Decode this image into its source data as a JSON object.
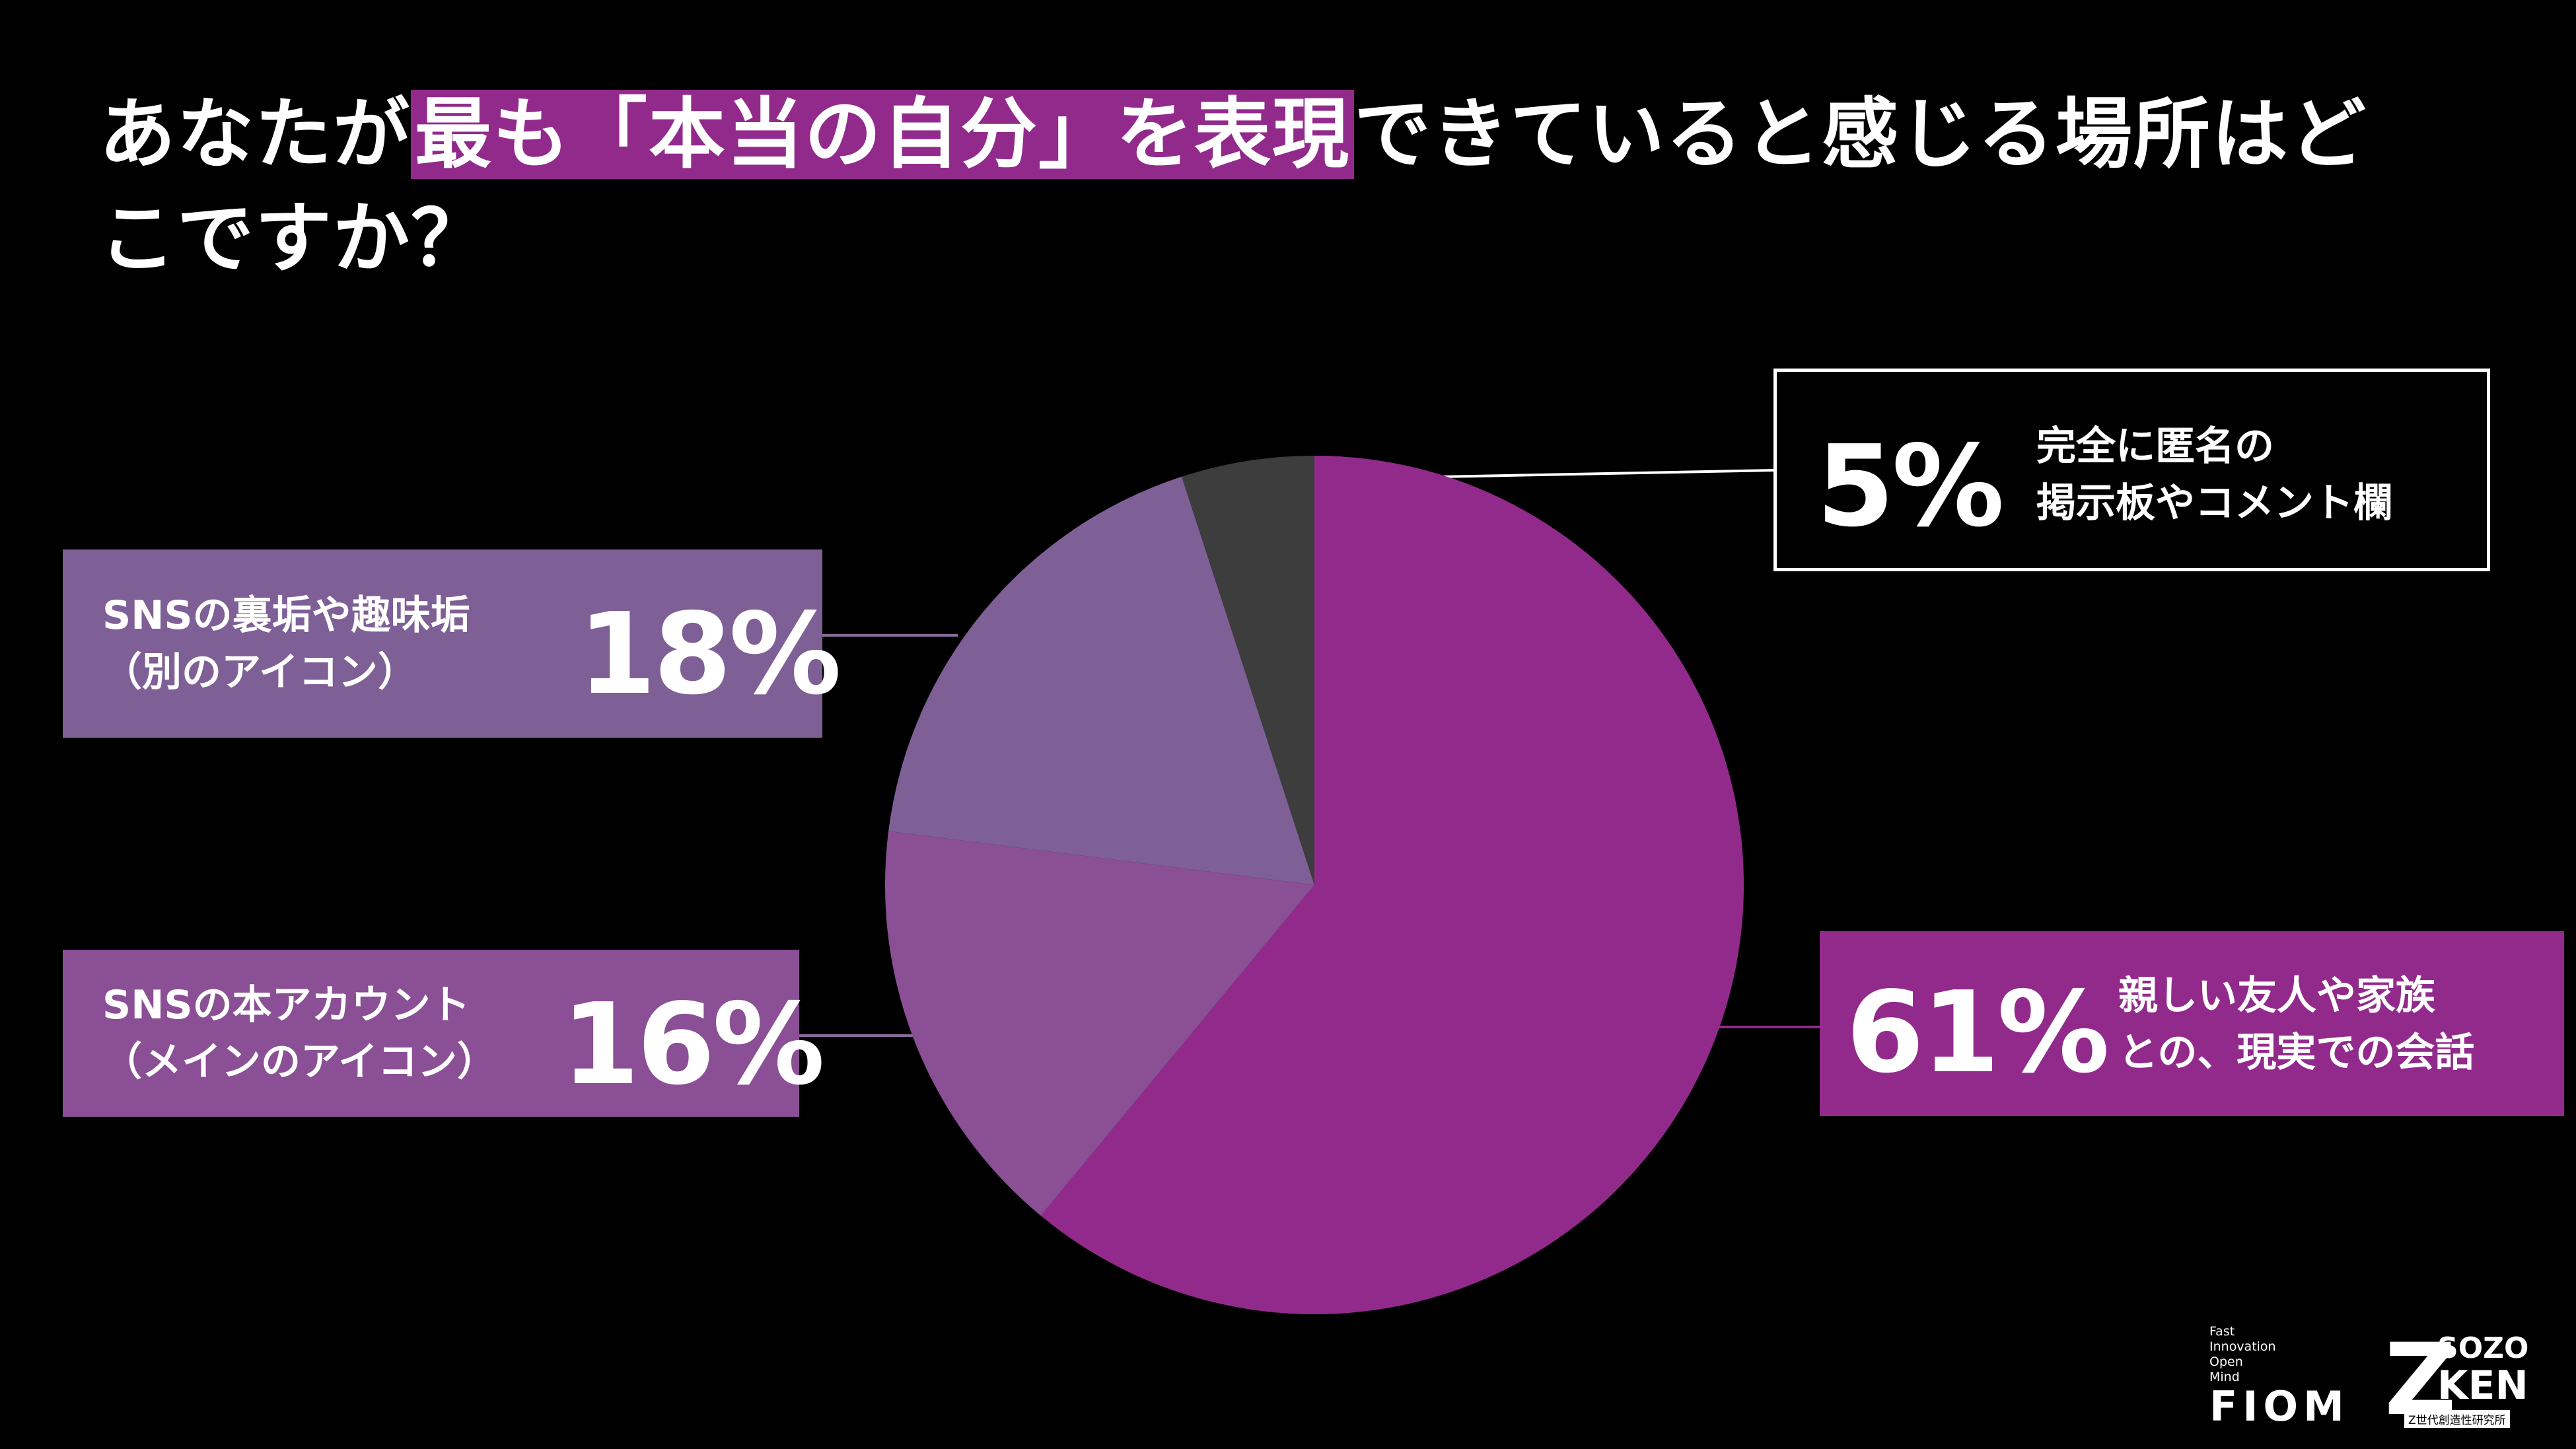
{
  "title": {
    "before": "あなたが",
    "highlight": "最も「本当の自分」を表現",
    "after": "できていると感じる場所はどこですか？"
  },
  "chart_data": {
    "type": "pie",
    "start_angle_deg": 0,
    "direction": "clockwise",
    "slices": [
      {
        "label": "親しい友人や家族との、現実での会話",
        "value": 61,
        "display": "61%",
        "color": "#922a8c",
        "label_lines": [
          "親しい友人や家族",
          "との、現実での会話"
        ]
      },
      {
        "label": "SNSの本アカウント（メインのアイコン）",
        "value": 16,
        "display": "16%",
        "color": "#8a4f95",
        "label_lines": [
          "SNSの本アカウント",
          "（メインのアイコン）"
        ]
      },
      {
        "label": "SNSの裏垢や趣味垢（別のアイコン）",
        "value": 18,
        "display": "18%",
        "color": "#7e5f96",
        "label_lines": [
          "SNSの裏垢や趣味垢",
          "（別のアイコン）"
        ]
      },
      {
        "label": "完全に匿名の掲示板やコメント欄",
        "value": 5,
        "display": "5%",
        "color": "#3d3d3d",
        "label_lines": [
          "完全に匿名の",
          "掲示板やコメント欄"
        ]
      }
    ]
  },
  "logos": {
    "fiom_small": "Fast\nInnovation\nOpen\nMind",
    "fiom_big": "FIOM",
    "zk_z": "Z",
    "zk_sozo": "SOZO",
    "zk_ken": "KEN",
    "zk_sub": "Z世代創造性研究所"
  }
}
